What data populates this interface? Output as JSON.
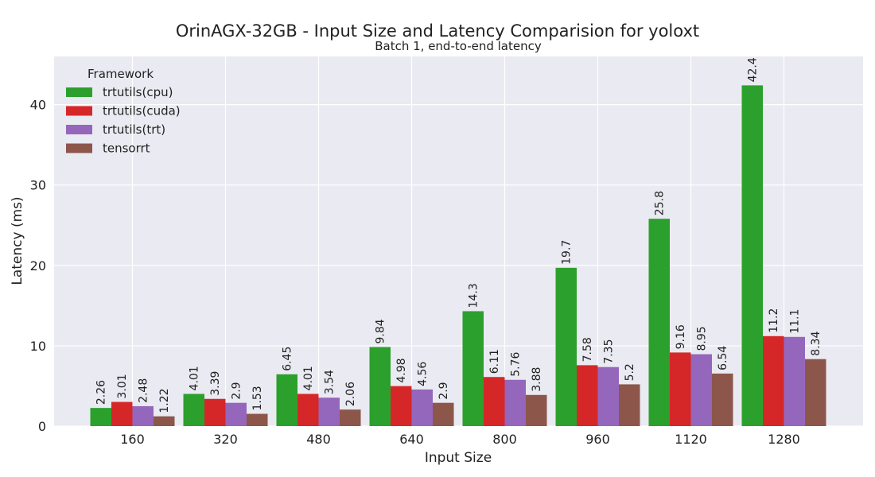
{
  "chart_data": {
    "type": "bar",
    "title": "OrinAGX-32GB - Input Size and Latency Comparision for yoloxt",
    "subtitle": "Batch 1, end-to-end latency",
    "xlabel": "Input Size",
    "ylabel": "Latency (ms)",
    "categories": [
      "160",
      "320",
      "480",
      "640",
      "800",
      "960",
      "1120",
      "1280"
    ],
    "ylim": [
      0,
      46
    ],
    "yticks": [
      0,
      10,
      20,
      30,
      40
    ],
    "grid": true,
    "legend": {
      "title": "Framework",
      "placement": "top-left"
    },
    "series": [
      {
        "name": "trtutils(cpu)",
        "color": "#2ca02c",
        "values": [
          2.26,
          4.01,
          6.45,
          9.84,
          14.3,
          19.7,
          25.8,
          42.4
        ],
        "labels": [
          "2.26",
          "4.01",
          "6.45",
          "9.84",
          "14.3",
          "19.7",
          "25.8",
          "42.4"
        ]
      },
      {
        "name": "trtutils(cuda)",
        "color": "#d62728",
        "values": [
          3.01,
          3.39,
          4.01,
          4.98,
          6.11,
          7.58,
          9.16,
          11.2
        ],
        "labels": [
          "3.01",
          "3.39",
          "4.01",
          "4.98",
          "6.11",
          "7.58",
          "9.16",
          "11.2"
        ]
      },
      {
        "name": "trtutils(trt)",
        "color": "#9467bd",
        "values": [
          2.48,
          2.9,
          3.54,
          4.56,
          5.76,
          7.35,
          8.95,
          11.1
        ],
        "labels": [
          "2.48",
          "2.9",
          "3.54",
          "4.56",
          "5.76",
          "7.35",
          "8.95",
          "11.1"
        ]
      },
      {
        "name": "tensorrt",
        "color": "#8c564b",
        "values": [
          1.22,
          1.53,
          2.06,
          2.9,
          3.88,
          5.2,
          6.54,
          8.34
        ],
        "labels": [
          "1.22",
          "1.53",
          "2.06",
          "2.9",
          "3.88",
          "5.2",
          "6.54",
          "8.34"
        ]
      }
    ]
  }
}
